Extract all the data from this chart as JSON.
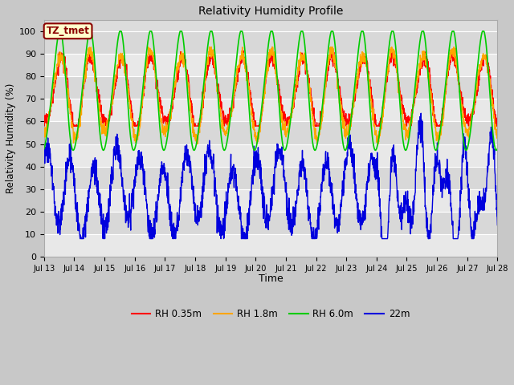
{
  "title": "Relativity Humidity Profile",
  "xlabel": "Time",
  "ylabel": "Relativity Humidity (%)",
  "ylim": [
    0,
    105
  ],
  "yticks": [
    0,
    10,
    20,
    30,
    40,
    50,
    60,
    70,
    80,
    90,
    100
  ],
  "annotation_text": "TZ_tmet",
  "annotation_bg": "#ffffcc",
  "annotation_border": "#8B0000",
  "line_colors": {
    "RH 0.35m": "#ff0000",
    "RH 1.8m": "#ffa500",
    "RH 6.0m": "#00cc00",
    "22m": "#0000dd"
  },
  "x_tick_labels": [
    "Jul 13",
    "Jul 14",
    "Jul 15",
    "Jul 16",
    "Jul 17",
    "Jul 18",
    "Jul 19",
    "Jul 20",
    "Jul 21",
    "Jul 22",
    "Jul 23",
    "Jul 24",
    "Jul 25",
    "Jul 26",
    "Jul 27",
    "Jul 28"
  ],
  "legend_labels": [
    "RH 0.35m",
    "RH 1.8m",
    "RH 6.0m",
    "22m"
  ],
  "fig_width": 6.4,
  "fig_height": 4.8,
  "dpi": 100
}
